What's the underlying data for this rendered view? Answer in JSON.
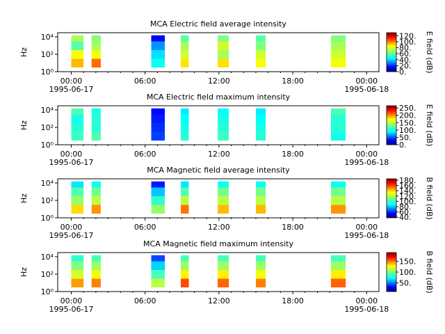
{
  "chart_data": [
    {
      "type": "spectrogram",
      "title": "MCA  Electric field average intensity",
      "ylabel": "Hz",
      "colorbar_label": "E field (dB)",
      "colormap": "jet",
      "yscale": "log",
      "xlim": [
        -1.1,
        25
      ],
      "ylim": [
        1,
        30000
      ],
      "xticks": [
        {
          "value": 0,
          "label": "00:00"
        },
        {
          "value": 6,
          "label": "06:00"
        },
        {
          "value": 12,
          "label": "12:00"
        },
        {
          "value": 18,
          "label": "18:00"
        },
        {
          "value": 24,
          "label": "00:00"
        }
      ],
      "xminorticks": [
        1,
        2,
        3,
        4,
        5,
        7,
        8,
        9,
        10,
        11,
        13,
        14,
        15,
        16,
        17,
        19,
        20,
        21,
        22,
        23
      ],
      "xdates": [
        {
          "value": 0,
          "label": "1995-06-17"
        },
        {
          "value": 24,
          "label": "1995-06-18"
        }
      ],
      "yticks": [
        {
          "value": 1,
          "label": "10⁰"
        },
        {
          "value": 100,
          "label": "10²"
        },
        {
          "value": 10000,
          "label": "10⁴"
        }
      ],
      "clim": [
        0,
        130
      ],
      "cticks": [
        {
          "value": 0,
          "label": "0."
        },
        {
          "value": 20,
          "label": "20."
        },
        {
          "value": 40,
          "label": "40."
        },
        {
          "value": 60,
          "label": "60."
        },
        {
          "value": 80,
          "label": "80."
        },
        {
          "value": 100,
          "label": "100."
        },
        {
          "value": 120,
          "label": "120."
        }
      ],
      "freq_bins": [
        3,
        30,
        300,
        3000,
        15000
      ],
      "blocks": [
        {
          "x0": 0,
          "x1": 1,
          "values": [
            90,
            80,
            60,
            70
          ]
        },
        {
          "x0": 1.65,
          "x1": 2.4,
          "values": [
            100,
            80,
            70,
            65
          ]
        },
        {
          "x0": 6.5,
          "x1": 7.6,
          "values": [
            50,
            45,
            35,
            15
          ]
        },
        {
          "x0": 8.9,
          "x1": 9.55,
          "values": [
            85,
            75,
            70,
            60
          ]
        },
        {
          "x0": 11.9,
          "x1": 12.8,
          "values": [
            85,
            70,
            75,
            65
          ]
        },
        {
          "x0": 15.0,
          "x1": 15.8,
          "values": [
            80,
            75,
            65,
            60
          ]
        },
        {
          "x0": 21.1,
          "x1": 22.3,
          "values": [
            80,
            75,
            70,
            65
          ]
        }
      ]
    },
    {
      "type": "spectrogram",
      "title": "MCA  Electric field maximum intensity",
      "ylabel": "Hz",
      "colorbar_label": "E field (dB)",
      "colormap": "jet",
      "yscale": "log",
      "xlim": [
        -1.1,
        25
      ],
      "ylim": [
        1,
        30000
      ],
      "xticks": [
        {
          "value": 0,
          "label": "00:00"
        },
        {
          "value": 6,
          "label": "06:00"
        },
        {
          "value": 12,
          "label": "12:00"
        },
        {
          "value": 18,
          "label": "18:00"
        },
        {
          "value": 24,
          "label": "00:00"
        }
      ],
      "xminorticks": [
        1,
        2,
        3,
        4,
        5,
        7,
        8,
        9,
        10,
        11,
        13,
        14,
        15,
        16,
        17,
        19,
        20,
        21,
        22,
        23
      ],
      "xdates": [
        {
          "value": 0,
          "label": "1995-06-17"
        },
        {
          "value": 24,
          "label": "1995-06-18"
        }
      ],
      "yticks": [
        {
          "value": 1,
          "label": "10⁰"
        },
        {
          "value": 100,
          "label": "10²"
        },
        {
          "value": 10000,
          "label": "10⁴"
        }
      ],
      "clim": [
        0,
        265
      ],
      "cticks": [
        {
          "value": 0,
          "label": "0."
        },
        {
          "value": 50,
          "label": "50."
        },
        {
          "value": 100,
          "label": "100."
        },
        {
          "value": 150,
          "label": "150."
        },
        {
          "value": 200,
          "label": "200."
        },
        {
          "value": 250,
          "label": "250."
        }
      ],
      "freq_bins": [
        3,
        30,
        300,
        3000,
        15000
      ],
      "blocks": [
        {
          "x0": 0,
          "x1": 1,
          "values": [
            115,
            110,
            105,
            120
          ]
        },
        {
          "x0": 1.65,
          "x1": 2.4,
          "values": [
            120,
            110,
            110,
            105
          ]
        },
        {
          "x0": 6.5,
          "x1": 7.6,
          "values": [
            50,
            45,
            40,
            35
          ]
        },
        {
          "x0": 8.9,
          "x1": 9.55,
          "values": [
            110,
            105,
            100,
            95
          ]
        },
        {
          "x0": 11.9,
          "x1": 12.8,
          "values": [
            115,
            110,
            105,
            100
          ]
        },
        {
          "x0": 15.0,
          "x1": 15.8,
          "values": [
            110,
            105,
            100,
            95
          ]
        },
        {
          "x0": 21.1,
          "x1": 22.3,
          "values": [
            105,
            110,
            110,
            120
          ]
        }
      ]
    },
    {
      "type": "spectrogram",
      "title": "MCA  Magnetic field average intensity",
      "ylabel": "Hz",
      "colorbar_label": "B field (dB)",
      "colormap": "jet",
      "yscale": "log",
      "xlim": [
        -1.1,
        25
      ],
      "ylim": [
        1,
        30000
      ],
      "xticks": [
        {
          "value": 0,
          "label": "00:00"
        },
        {
          "value": 6,
          "label": "06:00"
        },
        {
          "value": 12,
          "label": "12:00"
        },
        {
          "value": 18,
          "label": "18:00"
        },
        {
          "value": 24,
          "label": "00:00"
        }
      ],
      "xminorticks": [
        1,
        2,
        3,
        4,
        5,
        7,
        8,
        9,
        10,
        11,
        13,
        14,
        15,
        16,
        17,
        19,
        20,
        21,
        22,
        23
      ],
      "xdates": [
        {
          "value": 0,
          "label": "1995-06-17"
        },
        {
          "value": 24,
          "label": "1995-06-18"
        }
      ],
      "yticks": [
        {
          "value": 1,
          "label": "10⁰"
        },
        {
          "value": 100,
          "label": "10²"
        },
        {
          "value": 10000,
          "label": "10⁴"
        }
      ],
      "clim": [
        38,
        185
      ],
      "cticks": [
        {
          "value": 40,
          "label": "40."
        },
        {
          "value": 60,
          "label": "60."
        },
        {
          "value": 80,
          "label": "80."
        },
        {
          "value": 100,
          "label": "100."
        },
        {
          "value": 120,
          "label": "120."
        },
        {
          "value": 140,
          "label": "140."
        },
        {
          "value": 160,
          "label": "160."
        },
        {
          "value": 180,
          "label": "180."
        }
      ],
      "freq_bins": [
        3,
        30,
        300,
        3000,
        15000
      ],
      "blocks": [
        {
          "x0": 0,
          "x1": 1,
          "values": [
            135,
            115,
            105,
            90
          ]
        },
        {
          "x0": 1.65,
          "x1": 2.4,
          "values": [
            145,
            120,
            110,
            95
          ]
        },
        {
          "x0": 6.5,
          "x1": 7.6,
          "values": [
            115,
            100,
            85,
            60
          ]
        },
        {
          "x0": 8.9,
          "x1": 9.55,
          "values": [
            150,
            120,
            105,
            90
          ]
        },
        {
          "x0": 11.9,
          "x1": 12.8,
          "values": [
            140,
            120,
            110,
            95
          ]
        },
        {
          "x0": 15.0,
          "x1": 15.8,
          "values": [
            140,
            120,
            110,
            95
          ]
        },
        {
          "x0": 21.1,
          "x1": 22.3,
          "values": [
            145,
            120,
            110,
            95
          ]
        }
      ]
    },
    {
      "type": "spectrogram",
      "title": "MCA  Magnetic field maximum intensity",
      "ylabel": "Hz",
      "colorbar_label": "B field (dB)",
      "colormap": "jet",
      "yscale": "log",
      "xlim": [
        -1.1,
        25
      ],
      "ylim": [
        1,
        30000
      ],
      "xticks": [
        {
          "value": 0,
          "label": "00:00"
        },
        {
          "value": 6,
          "label": "06:00"
        },
        {
          "value": 12,
          "label": "12:00"
        },
        {
          "value": 18,
          "label": "18:00"
        },
        {
          "value": 24,
          "label": "00:00"
        }
      ],
      "xminorticks": [
        1,
        2,
        3,
        4,
        5,
        7,
        8,
        9,
        10,
        11,
        13,
        14,
        15,
        16,
        17,
        19,
        20,
        21,
        22,
        23
      ],
      "xdates": [
        {
          "value": 0,
          "label": "1995-06-17"
        },
        {
          "value": 24,
          "label": "1995-06-18"
        }
      ],
      "yticks": [
        {
          "value": 1,
          "label": "10⁰"
        },
        {
          "value": 100,
          "label": "10²"
        },
        {
          "value": 10000,
          "label": "10⁴"
        }
      ],
      "clim": [
        10,
        190
      ],
      "cticks": [
        {
          "value": 50,
          "label": "50."
        },
        {
          "value": 100,
          "label": "100."
        },
        {
          "value": 150,
          "label": "150."
        }
      ],
      "freq_bins": [
        3,
        30,
        300,
        3000,
        15000
      ],
      "blocks": [
        {
          "x0": 0,
          "x1": 1,
          "values": [
            140,
            115,
            100,
            85
          ]
        },
        {
          "x0": 1.65,
          "x1": 2.4,
          "values": [
            145,
            120,
            105,
            90
          ]
        },
        {
          "x0": 6.5,
          "x1": 7.6,
          "values": [
            110,
            90,
            70,
            45
          ]
        },
        {
          "x0": 8.9,
          "x1": 9.55,
          "values": [
            155,
            125,
            105,
            90
          ]
        },
        {
          "x0": 11.9,
          "x1": 12.8,
          "values": [
            150,
            125,
            105,
            90
          ]
        },
        {
          "x0": 15.0,
          "x1": 15.8,
          "values": [
            145,
            120,
            105,
            90
          ]
        },
        {
          "x0": 21.1,
          "x1": 22.3,
          "values": [
            150,
            125,
            105,
            90
          ]
        }
      ]
    }
  ]
}
